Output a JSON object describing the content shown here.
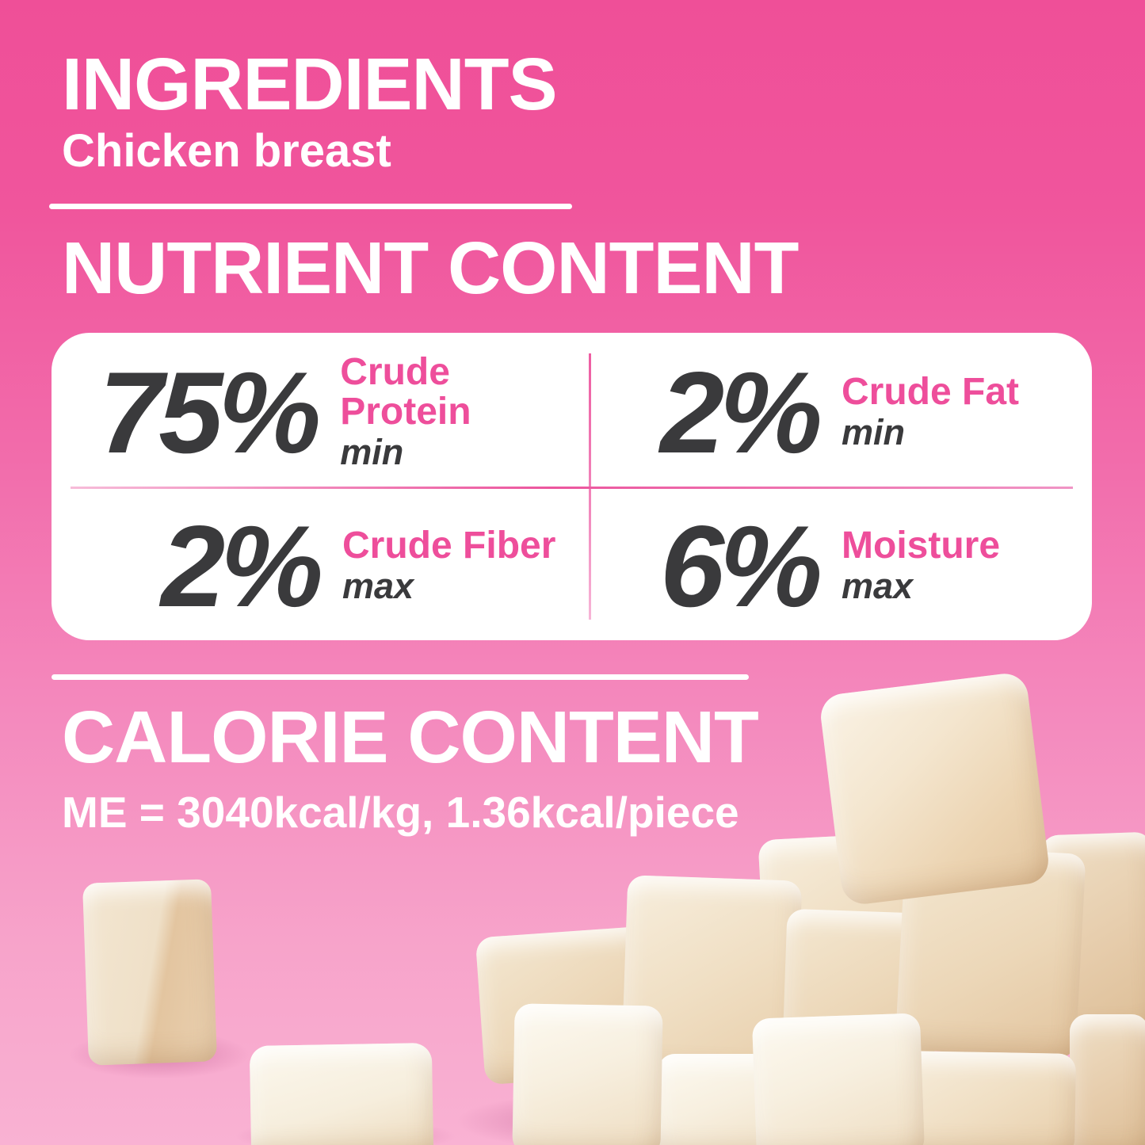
{
  "sections": {
    "ingredients": {
      "title": "INGREDIENTS",
      "value": "Chicken breast"
    },
    "nutrients": {
      "title": "NUTRIENT CONTENT",
      "items": [
        {
          "value": "75%",
          "label": "Crude Protein",
          "qualifier": "min"
        },
        {
          "value": "2%",
          "label": "Crude Fat",
          "qualifier": "min"
        },
        {
          "value": "2%",
          "label": "Crude Fiber",
          "qualifier": "max"
        },
        {
          "value": "6%",
          "label": "Moisture",
          "qualifier": "max"
        }
      ]
    },
    "calories": {
      "title": "CALORIE CONTENT",
      "value": "ME = 3040kcal/kg, 1.36kcal/piece"
    }
  },
  "colors": {
    "background_top": "#ef4f98",
    "background_bottom": "#f9b2d3",
    "accent_pink": "#ee4e9b",
    "number_gray": "#3a3a3c",
    "card_background": "#ffffff",
    "text_white": "#ffffff"
  }
}
